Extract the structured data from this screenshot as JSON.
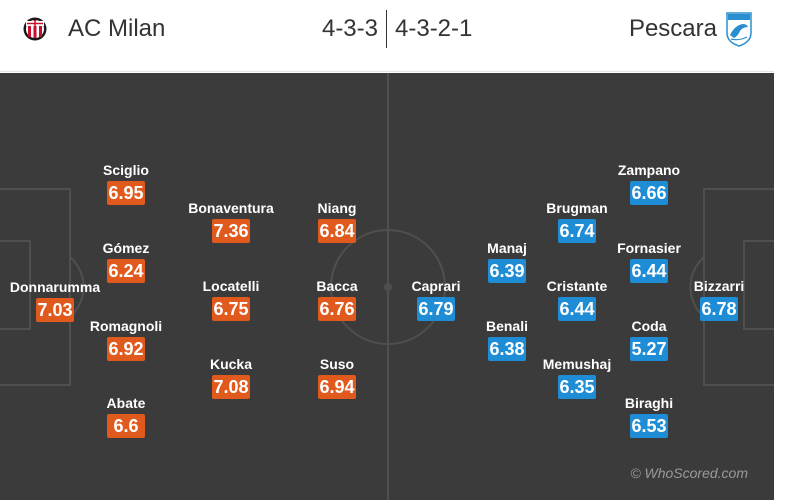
{
  "header": {
    "home_team": "AC Milan",
    "away_team": "Pescara",
    "home_formation": "4-3-3",
    "away_formation": "4-3-2-1",
    "home_crest_icon": "ac-milan-crest-icon",
    "away_crest_icon": "pescara-crest-icon"
  },
  "colors": {
    "home_rating": "#e05a1d",
    "away_rating": "#1f8dd6",
    "pitch": "#3b3b3b"
  },
  "home_players": [
    {
      "name": "Donnarumma",
      "rating": "7.03"
    },
    {
      "name": "Sciglio",
      "rating": "6.95"
    },
    {
      "name": "Gómez",
      "rating": "6.24"
    },
    {
      "name": "Romagnoli",
      "rating": "6.92"
    },
    {
      "name": "Abate",
      "rating": "6.6"
    },
    {
      "name": "Bonaventura",
      "rating": "7.36"
    },
    {
      "name": "Locatelli",
      "rating": "6.75"
    },
    {
      "name": "Kucka",
      "rating": "7.08"
    },
    {
      "name": "Niang",
      "rating": "6.84"
    },
    {
      "name": "Bacca",
      "rating": "6.76"
    },
    {
      "name": "Suso",
      "rating": "6.94"
    }
  ],
  "away_players": [
    {
      "name": "Bizzarri",
      "rating": "6.78"
    },
    {
      "name": "Zampano",
      "rating": "6.66"
    },
    {
      "name": "Fornasier",
      "rating": "6.44"
    },
    {
      "name": "Coda",
      "rating": "5.27"
    },
    {
      "name": "Biraghi",
      "rating": "6.53"
    },
    {
      "name": "Brugman",
      "rating": "6.74"
    },
    {
      "name": "Cristante",
      "rating": "6.44"
    },
    {
      "name": "Memushaj",
      "rating": "6.35"
    },
    {
      "name": "Manaj",
      "rating": "6.39"
    },
    {
      "name": "Benali",
      "rating": "6.38"
    },
    {
      "name": "Caprari",
      "rating": "6.79"
    }
  ],
  "watermark": "© WhoScored.com"
}
